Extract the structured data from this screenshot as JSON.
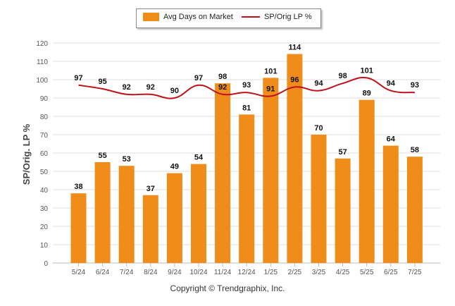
{
  "chart_data": {
    "type": "bar",
    "ylabel": "SP/Orig. LP %",
    "ylim": [
      0,
      120
    ],
    "yticks": [
      0,
      10,
      20,
      30,
      40,
      50,
      60,
      70,
      80,
      90,
      100,
      110,
      120
    ],
    "grid": true,
    "legend_position": "top-center",
    "categories": [
      "5/24",
      "6/24",
      "7/24",
      "8/24",
      "9/24",
      "10/24",
      "11/24",
      "12/24",
      "1/25",
      "2/25",
      "3/25",
      "4/25",
      "5/25",
      "6/25",
      "7/25"
    ],
    "series": [
      {
        "name": "Avg Days on Market",
        "type": "bar",
        "color": "#f08c1a",
        "values": [
          38,
          55,
          53,
          37,
          49,
          54,
          98,
          81,
          101,
          114,
          70,
          57,
          89,
          64,
          58
        ]
      },
      {
        "name": "SP/Orig LP %",
        "type": "line",
        "color": "#c0111a",
        "values": [
          97,
          95,
          92,
          92,
          90,
          97,
          92,
          93,
          91,
          96,
          94,
          98,
          101,
          94,
          93
        ]
      }
    ]
  },
  "footer": {
    "copyright": "Copyright © Trendgraphix, Inc."
  }
}
